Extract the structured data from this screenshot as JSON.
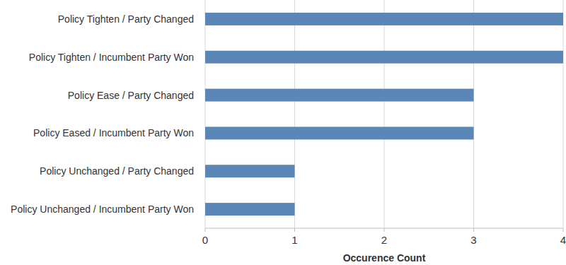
{
  "chart_data": {
    "type": "bar",
    "orientation": "horizontal",
    "categories": [
      "Policy Tighten / Party Changed",
      "Policy Tighten / Incumbent Party Won",
      "Policy Ease / Party Changed",
      "Policy Eased / Incumbent Party Won",
      "Policy Unchanged / Party Changed",
      "Policy Unchanged / Incumbent Party Won"
    ],
    "values": [
      4,
      4,
      3,
      3,
      1,
      1
    ],
    "color": "#5b87b6",
    "x_label": "Occurence Count",
    "xlim": [
      0,
      4
    ],
    "xticks": [
      0,
      1,
      2,
      3,
      4
    ],
    "grid": true
  }
}
